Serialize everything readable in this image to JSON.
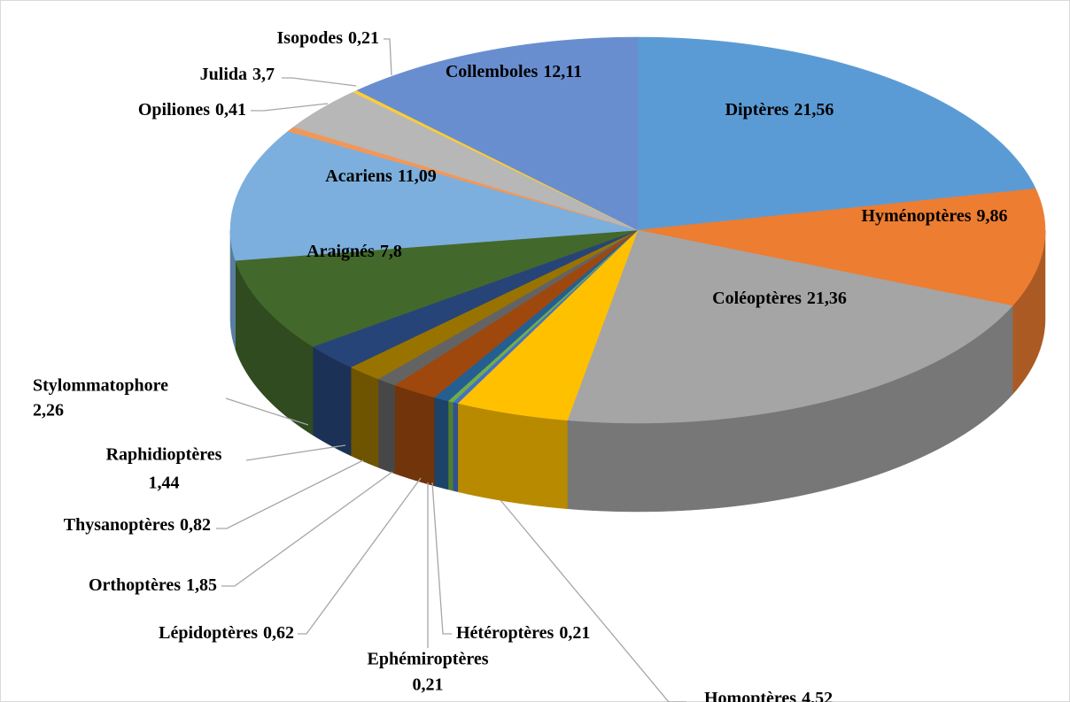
{
  "chart_data": {
    "type": "pie",
    "categories": [
      "Diptères",
      "Hyménoptères",
      "Coléoptères",
      "Homoptères",
      "Hétéroptères",
      "Ephémiroptères",
      "Lépidoptères",
      "Orthoptères",
      "Thysanoptères",
      "Raphidioptères",
      "Stylommatophore",
      "Araignés",
      "Acariens",
      "Opiliones",
      "Julida",
      "Isopodes",
      "Collemboles"
    ],
    "values": [
      21.56,
      9.86,
      21.36,
      4.52,
      0.21,
      0.21,
      0.62,
      1.85,
      0.82,
      1.44,
      2.26,
      7.8,
      11.09,
      0.41,
      3.7,
      0.21,
      12.11
    ],
    "value_labels": [
      "21,56",
      "9,86",
      "21,36",
      "4,52",
      "0,21",
      "0,21",
      "0,62",
      "1,85",
      "0,82",
      "1,44",
      "2,26",
      "7,8",
      "11,09",
      "0,41",
      "3,7",
      "0,21",
      "12,11"
    ],
    "colors": [
      "#5b9bd5",
      "#ed7d31",
      "#a5a5a5",
      "#ffc000",
      "#4472c4",
      "#70ad47",
      "#255e91",
      "#9e480e",
      "#636363",
      "#997300",
      "#264478",
      "#43682b",
      "#7cafdd",
      "#f1975a",
      "#b7b7b7",
      "#ffcd33",
      "#698ed0"
    ]
  }
}
